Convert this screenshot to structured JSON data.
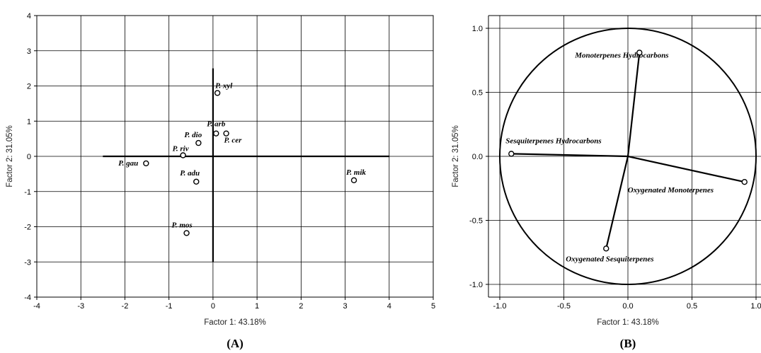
{
  "chart_data": [
    {
      "type": "scatter",
      "xlabel": "Factor 1: 43.18%",
      "ylabel": "Factor 2: 31.05%",
      "xlim": [
        -4,
        5
      ],
      "ylim": [
        -4,
        4
      ],
      "x_ticks": [
        "-4",
        "-3",
        "-2",
        "-1",
        "0",
        "1",
        "2",
        "3",
        "4",
        "5"
      ],
      "y_ticks": [
        "-4",
        "-3",
        "-2",
        "-1",
        "0",
        "1",
        "2",
        "3",
        "4"
      ],
      "grid": true,
      "reference_lines": {
        "horizontal": {
          "y": 0,
          "x_from": -2.5,
          "x_to": 4.0
        },
        "vertical": {
          "x": 0,
          "y_from": -3.0,
          "y_to": 2.5
        }
      },
      "points": [
        {
          "label": "P. xyl",
          "x": 0.1,
          "y": 1.8
        },
        {
          "label": "P. arb",
          "x": 0.07,
          "y": 0.65
        },
        {
          "label": "P. cer",
          "x": 0.3,
          "y": 0.65
        },
        {
          "label": "P. dio",
          "x": -0.33,
          "y": 0.38
        },
        {
          "label": "P. riv",
          "x": -0.68,
          "y": 0.03
        },
        {
          "label": "P. gau",
          "x": -1.52,
          "y": -0.2
        },
        {
          "label": "P. adu",
          "x": -0.38,
          "y": -0.72
        },
        {
          "label": "P. mik",
          "x": 3.2,
          "y": -0.68
        },
        {
          "label": "P. mos",
          "x": -0.6,
          "y": -2.18
        }
      ],
      "panel_label": "(A)"
    },
    {
      "type": "scatter",
      "xlabel": "Factor 1: 43.18%",
      "ylabel": "Factor 2: 31.05%",
      "xlim": [
        -1.1,
        1.1
      ],
      "ylim": [
        -1.1,
        1.1
      ],
      "x_ticks": [
        "-1.0",
        "-0.5",
        "0.0",
        "0.5",
        "1.0"
      ],
      "y_ticks": [
        "-1.0",
        "-0.5",
        "0.0",
        "0.5",
        "1.0"
      ],
      "grid": true,
      "unit_circle": true,
      "vectors": [
        {
          "label": "Monoterpenes Hydrocarbons",
          "x": 0.09,
          "y": 0.81
        },
        {
          "label": "Sesquiterpenes Hydrocarbons",
          "x": -0.91,
          "y": 0.02
        },
        {
          "label": "Oxygenated Monoterpenes",
          "x": 0.91,
          "y": -0.2
        },
        {
          "label": "Oxygenated Sesquiterpenes",
          "x": -0.17,
          "y": -0.72
        }
      ],
      "panel_label": "(B)"
    }
  ]
}
